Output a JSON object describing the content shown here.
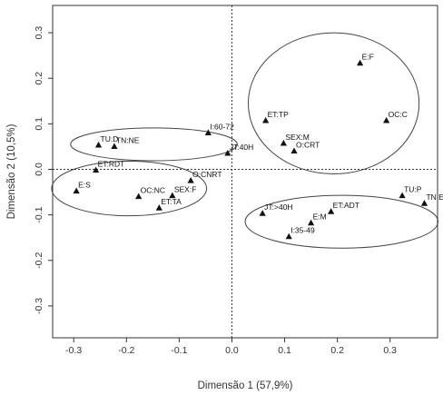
{
  "chart_data": {
    "type": "scatter",
    "title": "",
    "xlabel": "Dimensão 1 (57,9%)",
    "ylabel": "Dimensão 2 (10,5%)",
    "xlim": [
      -0.34,
      0.39
    ],
    "ylim": [
      -0.37,
      0.36
    ],
    "xticks": [
      -0.3,
      -0.2,
      -0.1,
      0.0,
      0.1,
      0.2,
      0.3
    ],
    "yticks": [
      -0.3,
      -0.2,
      -0.1,
      0.0,
      0.1,
      0.2,
      0.3
    ],
    "xtick_labels": [
      "-0.3",
      "-0.2",
      "-0.1",
      "0.0",
      "0.1",
      "0.2",
      "0.3"
    ],
    "ytick_labels": [
      "-0.3",
      "-0.2",
      "-0.1",
      "0.0",
      "0.1",
      "0.2",
      "0.3"
    ],
    "reference_lines": {
      "x": 0,
      "y": 0,
      "style": "dotted"
    },
    "grid": false,
    "marker": "triangle",
    "points": [
      {
        "label": "E:F",
        "x": 0.243,
        "y": 0.233
      },
      {
        "label": "ET:TP",
        "x": 0.064,
        "y": 0.107
      },
      {
        "label": "OC:C",
        "x": 0.293,
        "y": 0.107
      },
      {
        "label": "SEX:M",
        "x": 0.098,
        "y": 0.057
      },
      {
        "label": "O:CRT",
        "x": 0.118,
        "y": 0.04
      },
      {
        "label": "I:60-72",
        "x": -0.045,
        "y": 0.08
      },
      {
        "label": "JT:40H",
        "x": -0.008,
        "y": 0.035
      },
      {
        "label": "TU:D",
        "x": -0.253,
        "y": 0.053
      },
      {
        "label": "TN:NE",
        "x": -0.223,
        "y": 0.05
      },
      {
        "label": "ET:RDT",
        "x": -0.258,
        "y": -0.002
      },
      {
        "label": "O:CNRT",
        "x": -0.078,
        "y": -0.025
      },
      {
        "label": "E:S",
        "x": -0.295,
        "y": -0.048
      },
      {
        "label": "OC:NC",
        "x": -0.177,
        "y": -0.06
      },
      {
        "label": "SEX:F",
        "x": -0.113,
        "y": -0.058
      },
      {
        "label": "ET:TA",
        "x": -0.138,
        "y": -0.085
      },
      {
        "label": "JT:>40H",
        "x": 0.058,
        "y": -0.097
      },
      {
        "label": "ET:ADT",
        "x": 0.188,
        "y": -0.093
      },
      {
        "label": "E:M",
        "x": 0.15,
        "y": -0.118
      },
      {
        "label": "I:35-49",
        "x": 0.108,
        "y": -0.148
      },
      {
        "label": "TU:P",
        "x": 0.323,
        "y": -0.058
      },
      {
        "label": "TN:E",
        "x": 0.365,
        "y": -0.075
      }
    ],
    "ellipses": [
      {
        "name": "group-top-right",
        "cx": 0.193,
        "cy": 0.145,
        "rx": 0.162,
        "ry": 0.155
      },
      {
        "name": "group-upper-left",
        "cx": -0.148,
        "cy": 0.055,
        "rx": 0.158,
        "ry": 0.036
      },
      {
        "name": "group-lower-left",
        "cx": -0.195,
        "cy": -0.042,
        "rx": 0.147,
        "ry": 0.06
      },
      {
        "name": "group-lower-right",
        "cx": 0.208,
        "cy": -0.115,
        "rx": 0.183,
        "ry": 0.058
      }
    ],
    "colors": {
      "marker": "#111111",
      "line": "#333333",
      "ellipse": "#444444",
      "background": "#ffffff"
    }
  }
}
